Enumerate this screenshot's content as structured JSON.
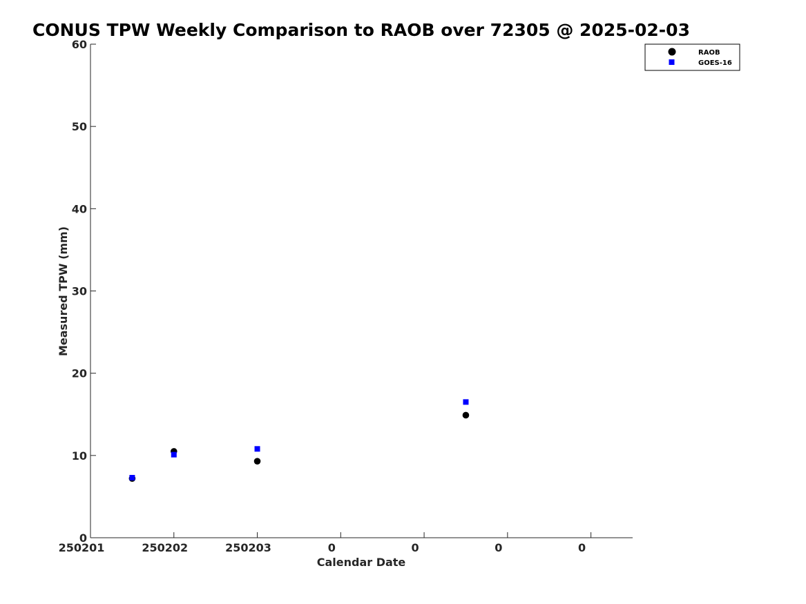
{
  "chart_data": {
    "type": "scatter",
    "title": "CONUS TPW Weekly Comparison to RAOB over 72305 @ 2025-02-03",
    "xlabel": "Calendar Date",
    "ylabel": "Measured TPW (mm)",
    "xlim": [
      0,
      6.5
    ],
    "ylim": [
      0,
      60
    ],
    "x_ticks": [
      0,
      1,
      2,
      3,
      4,
      5,
      6
    ],
    "x_tick_labels": [
      "250201",
      "250202",
      "250203",
      "0",
      "0",
      "0",
      "0"
    ],
    "y_ticks": [
      0,
      10,
      20,
      30,
      40,
      50,
      60
    ],
    "y_tick_labels": [
      "0",
      "10",
      "20",
      "30",
      "40",
      "50",
      "60"
    ],
    "grid": false,
    "legend_position": "top-right-outside",
    "series": [
      {
        "name": "RAOB",
        "marker": "circle",
        "color": "#000000",
        "x": [
          0.5,
          1.0,
          2.0,
          4.5
        ],
        "y": [
          7.2,
          10.5,
          9.3,
          14.9
        ]
      },
      {
        "name": "GOES-16",
        "marker": "square",
        "color": "#0000ff",
        "x": [
          0.5,
          1.0,
          2.0,
          4.5
        ],
        "y": [
          7.3,
          10.1,
          10.8,
          16.5
        ]
      }
    ]
  }
}
